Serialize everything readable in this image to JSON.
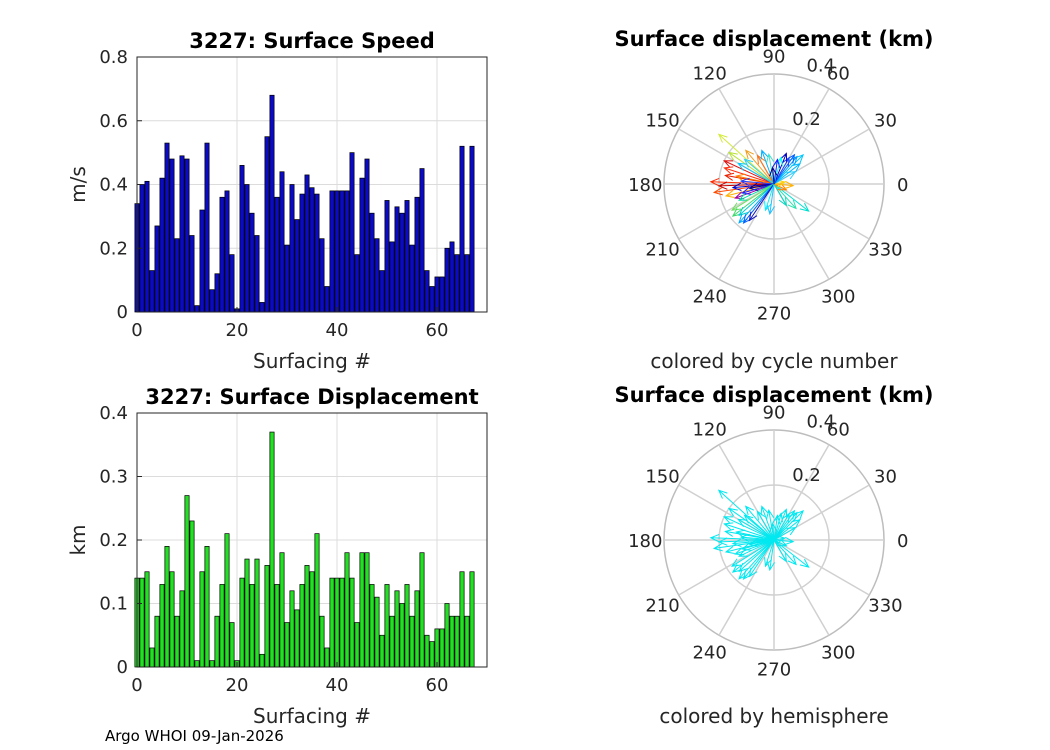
{
  "footer": "Argo WHOI 09-Jan-2026",
  "chart_data": [
    {
      "type": "bar",
      "title": "3227: Surface Speed",
      "xlabel": "Surfacing #",
      "ylabel": "m/s",
      "xlim": [
        0,
        70
      ],
      "ylim": [
        0,
        0.8
      ],
      "xticks": [
        0,
        20,
        40,
        60
      ],
      "xtick_labels": [
        "0",
        "20",
        "40",
        "60"
      ],
      "yticks": [
        0,
        0.2,
        0.4,
        0.6,
        0.8
      ],
      "ytick_labels": [
        "0",
        "0.2",
        "0.4",
        "0.6",
        "0.8"
      ],
      "grid": true,
      "color": "#0a0ac8",
      "x": [
        0,
        1,
        2,
        3,
        4,
        5,
        6,
        7,
        8,
        9,
        10,
        11,
        12,
        13,
        14,
        15,
        16,
        17,
        18,
        19,
        20,
        21,
        22,
        23,
        24,
        25,
        26,
        27,
        28,
        29,
        30,
        31,
        32,
        33,
        34,
        35,
        36,
        37,
        38,
        39,
        40,
        41,
        42,
        43,
        44,
        45,
        46,
        47,
        48,
        49,
        50,
        51,
        52,
        53,
        54,
        55,
        56,
        57,
        58,
        59,
        60,
        61,
        62,
        63,
        64,
        65,
        66,
        67
      ],
      "values": [
        0.34,
        0.4,
        0.41,
        0.13,
        0.27,
        0.42,
        0.53,
        0.48,
        0.23,
        0.49,
        0.48,
        0.24,
        0.02,
        0.32,
        0.53,
        0.07,
        0.12,
        0.36,
        0.38,
        0.18,
        0.01,
        0.46,
        0.4,
        0.31,
        0.24,
        0.03,
        0.55,
        0.68,
        0.36,
        0.44,
        0.21,
        0.4,
        0.29,
        0.37,
        0.43,
        0.39,
        0.37,
        0.23,
        0.08,
        0.38,
        0.38,
        0.38,
        0.38,
        0.5,
        0.18,
        0.42,
        0.48,
        0.31,
        0.23,
        0.13,
        0.35,
        0.22,
        0.33,
        0.31,
        0.35,
        0.21,
        0.36,
        0.45,
        0.13,
        0.08,
        0.11,
        0.11,
        0.2,
        0.22,
        0.18,
        0.52,
        0.18,
        0.52
      ]
    },
    {
      "type": "bar",
      "title": "3227: Surface Displacement",
      "xlabel": "Surfacing #",
      "ylabel": "km",
      "xlim": [
        0,
        70
      ],
      "ylim": [
        0,
        0.4
      ],
      "xticks": [
        0,
        20,
        40,
        60
      ],
      "xtick_labels": [
        "0",
        "20",
        "40",
        "60"
      ],
      "yticks": [
        0,
        0.1,
        0.2,
        0.3,
        0.4
      ],
      "ytick_labels": [
        "0",
        "0.1",
        "0.2",
        "0.3",
        "0.4"
      ],
      "grid": true,
      "color": "#22e022",
      "x": [
        0,
        1,
        2,
        3,
        4,
        5,
        6,
        7,
        8,
        9,
        10,
        11,
        12,
        13,
        14,
        15,
        16,
        17,
        18,
        19,
        20,
        21,
        22,
        23,
        24,
        25,
        26,
        27,
        28,
        29,
        30,
        31,
        32,
        33,
        34,
        35,
        36,
        37,
        38,
        39,
        40,
        41,
        42,
        43,
        44,
        45,
        46,
        47,
        48,
        49,
        50,
        51,
        52,
        53,
        54,
        55,
        56,
        57,
        58,
        59,
        60,
        61,
        62,
        63,
        64,
        65,
        66,
        67
      ],
      "values": [
        0.14,
        0.14,
        0.15,
        0.03,
        0.08,
        0.13,
        0.19,
        0.15,
        0.08,
        0.12,
        0.27,
        0.23,
        0.01,
        0.15,
        0.19,
        0.01,
        0.08,
        0.13,
        0.21,
        0.07,
        0.01,
        0.14,
        0.17,
        0.13,
        0.17,
        0.02,
        0.16,
        0.37,
        0.13,
        0.18,
        0.07,
        0.12,
        0.09,
        0.13,
        0.16,
        0.15,
        0.21,
        0.08,
        0.03,
        0.14,
        0.14,
        0.14,
        0.18,
        0.14,
        0.07,
        0.18,
        0.18,
        0.13,
        0.11,
        0.05,
        0.13,
        0.08,
        0.12,
        0.1,
        0.13,
        0.08,
        0.12,
        0.18,
        0.05,
        0.04,
        0.06,
        0.06,
        0.1,
        0.08,
        0.08,
        0.15,
        0.08,
        0.15
      ]
    },
    {
      "type": "polar-vectors",
      "title": "Surface displacement (km)",
      "caption": "colored by cycle number",
      "rlim": [
        0,
        0.4
      ],
      "r_ticks": [
        0.2,
        0.4
      ],
      "r_tick_labels": [
        "0.2",
        "0.4"
      ],
      "angle_ticks": [
        0,
        30,
        60,
        90,
        120,
        150,
        180,
        210,
        240,
        270,
        300,
        330
      ],
      "angle_tick_labels": [
        "0",
        "30",
        "60",
        "90",
        "120",
        "150",
        "180",
        "210",
        "240",
        "270",
        "300",
        "330"
      ],
      "vectors": [
        {
          "angle": 138,
          "r": 0.27,
          "color": "#d4ea3a"
        },
        {
          "angle": 145,
          "r": 0.2,
          "color": "#b8e23c"
        },
        {
          "angle": 130,
          "r": 0.16,
          "color": "#f0a020"
        },
        {
          "angle": 120,
          "r": 0.12,
          "color": "#ff7010"
        },
        {
          "angle": 155,
          "r": 0.2,
          "color": "#e01010"
        },
        {
          "angle": 162,
          "r": 0.19,
          "color": "#ff3010"
        },
        {
          "angle": 170,
          "r": 0.18,
          "color": "#e82000"
        },
        {
          "angle": 178,
          "r": 0.23,
          "color": "#ff2a00"
        },
        {
          "angle": 182,
          "r": 0.2,
          "color": "#c40000"
        },
        {
          "angle": 188,
          "r": 0.22,
          "color": "#ff4a00"
        },
        {
          "angle": 194,
          "r": 0.18,
          "color": "#ffb000"
        },
        {
          "angle": 200,
          "r": 0.15,
          "color": "#a000a0"
        },
        {
          "angle": 168,
          "r": 0.14,
          "color": "#ff8000"
        },
        {
          "angle": 150,
          "r": 0.15,
          "color": "#00c8ff"
        },
        {
          "angle": 140,
          "r": 0.14,
          "color": "#30d0f0"
        },
        {
          "angle": 110,
          "r": 0.13,
          "color": "#00b0ff"
        },
        {
          "angle": 100,
          "r": 0.11,
          "color": "#40e0d0"
        },
        {
          "angle": 175,
          "r": 0.12,
          "color": "#2040ff"
        },
        {
          "angle": 185,
          "r": 0.15,
          "color": "#0000c0"
        },
        {
          "angle": 190,
          "r": 0.09,
          "color": "#00008b"
        },
        {
          "angle": 196,
          "r": 0.12,
          "color": "#1e1eff"
        },
        {
          "angle": 205,
          "r": 0.14,
          "color": "#00e0a0"
        },
        {
          "angle": 212,
          "r": 0.18,
          "color": "#70e060"
        },
        {
          "angle": 218,
          "r": 0.19,
          "color": "#40d870"
        },
        {
          "angle": 222,
          "r": 0.17,
          "color": "#00d0d0"
        },
        {
          "angle": 228,
          "r": 0.19,
          "color": "#00a8ff"
        },
        {
          "angle": 232,
          "r": 0.18,
          "color": "#0060ff"
        },
        {
          "angle": 236,
          "r": 0.16,
          "color": "#1010c0"
        },
        {
          "angle": 252,
          "r": 0.1,
          "color": "#00f0ff"
        },
        {
          "angle": 262,
          "r": 0.11,
          "color": "#20c0ff"
        },
        {
          "angle": 300,
          "r": 0.09,
          "color": "#00d8c0"
        },
        {
          "angle": 312,
          "r": 0.12,
          "color": "#30e0b0"
        },
        {
          "angle": 322,
          "r": 0.16,
          "color": "#00e0d0"
        },
        {
          "angle": 335,
          "r": 0.05,
          "color": "#ff8000"
        },
        {
          "angle": 355,
          "r": 0.07,
          "color": "#ffb000"
        },
        {
          "angle": 10,
          "r": 0.04,
          "color": "#ffd000"
        },
        {
          "angle": 30,
          "r": 0.09,
          "color": "#30d0ff"
        },
        {
          "angle": 38,
          "r": 0.12,
          "color": "#00b8ff"
        },
        {
          "angle": 45,
          "r": 0.15,
          "color": "#00c8ff"
        },
        {
          "angle": 50,
          "r": 0.13,
          "color": "#00a0ff"
        },
        {
          "angle": 55,
          "r": 0.13,
          "color": "#0060ff"
        },
        {
          "angle": 60,
          "r": 0.11,
          "color": "#2040ff"
        },
        {
          "angle": 68,
          "r": 0.12,
          "color": "#0000c0"
        },
        {
          "angle": 75,
          "r": 0.1,
          "color": "#00ffff"
        },
        {
          "angle": 82,
          "r": 0.09,
          "color": "#1818ff"
        },
        {
          "angle": 95,
          "r": 0.06,
          "color": "#00008b"
        }
      ]
    },
    {
      "type": "polar-vectors",
      "title": "Surface displacement (km)",
      "caption": "colored by hemisphere",
      "rlim": [
        0,
        0.4
      ],
      "r_ticks": [
        0.2,
        0.4
      ],
      "r_tick_labels": [
        "0.2",
        "0.4"
      ],
      "angle_ticks": [
        0,
        30,
        60,
        90,
        120,
        150,
        180,
        210,
        240,
        270,
        300,
        330
      ],
      "angle_tick_labels": [
        "0",
        "30",
        "60",
        "90",
        "120",
        "150",
        "180",
        "210",
        "240",
        "270",
        "300",
        "330"
      ],
      "color": "#00e8f0",
      "vectors": [
        {
          "angle": 138,
          "r": 0.27
        },
        {
          "angle": 145,
          "r": 0.2
        },
        {
          "angle": 130,
          "r": 0.16
        },
        {
          "angle": 120,
          "r": 0.12
        },
        {
          "angle": 155,
          "r": 0.2
        },
        {
          "angle": 162,
          "r": 0.19
        },
        {
          "angle": 170,
          "r": 0.18
        },
        {
          "angle": 178,
          "r": 0.23
        },
        {
          "angle": 182,
          "r": 0.2
        },
        {
          "angle": 188,
          "r": 0.22
        },
        {
          "angle": 194,
          "r": 0.18
        },
        {
          "angle": 200,
          "r": 0.15
        },
        {
          "angle": 168,
          "r": 0.14
        },
        {
          "angle": 150,
          "r": 0.15
        },
        {
          "angle": 140,
          "r": 0.14
        },
        {
          "angle": 110,
          "r": 0.13
        },
        {
          "angle": 100,
          "r": 0.11
        },
        {
          "angle": 175,
          "r": 0.12
        },
        {
          "angle": 185,
          "r": 0.15
        },
        {
          "angle": 190,
          "r": 0.09
        },
        {
          "angle": 196,
          "r": 0.12
        },
        {
          "angle": 205,
          "r": 0.14
        },
        {
          "angle": 212,
          "r": 0.18
        },
        {
          "angle": 218,
          "r": 0.19
        },
        {
          "angle": 222,
          "r": 0.17
        },
        {
          "angle": 228,
          "r": 0.19
        },
        {
          "angle": 232,
          "r": 0.18
        },
        {
          "angle": 236,
          "r": 0.16
        },
        {
          "angle": 252,
          "r": 0.1
        },
        {
          "angle": 262,
          "r": 0.11
        },
        {
          "angle": 300,
          "r": 0.09
        },
        {
          "angle": 312,
          "r": 0.12
        },
        {
          "angle": 322,
          "r": 0.16
        },
        {
          "angle": 335,
          "r": 0.05
        },
        {
          "angle": 355,
          "r": 0.07
        },
        {
          "angle": 10,
          "r": 0.04
        },
        {
          "angle": 30,
          "r": 0.09
        },
        {
          "angle": 38,
          "r": 0.12
        },
        {
          "angle": 45,
          "r": 0.15
        },
        {
          "angle": 50,
          "r": 0.13
        },
        {
          "angle": 55,
          "r": 0.13
        },
        {
          "angle": 60,
          "r": 0.11
        },
        {
          "angle": 68,
          "r": 0.12
        },
        {
          "angle": 75,
          "r": 0.1
        },
        {
          "angle": 82,
          "r": 0.09
        },
        {
          "angle": 95,
          "r": 0.06
        }
      ]
    }
  ]
}
